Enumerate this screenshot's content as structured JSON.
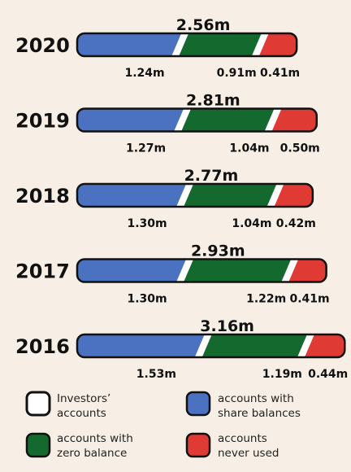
{
  "chart_data": {
    "type": "bar",
    "stacked": true,
    "orientation": "horizontal",
    "categories": [
      "2020",
      "2019",
      "2018",
      "2017",
      "2016"
    ],
    "totals_label": [
      "2.56m",
      "2.81m",
      "2.77m",
      "2.93m",
      "3.16m"
    ],
    "series": [
      {
        "name": "accounts with share balances",
        "color": "#4a72c0",
        "values": [
          1.24,
          1.27,
          1.3,
          1.3,
          1.53
        ],
        "labels": [
          "1.24m",
          "1.27m",
          "1.30m",
          "1.30m",
          "1.53m"
        ]
      },
      {
        "name": "accounts with zero balance",
        "color": "#146a2e",
        "values": [
          0.91,
          1.04,
          1.04,
          1.22,
          1.19
        ],
        "labels": [
          "0.91m",
          "1.04m",
          "1.04m",
          "1.22m",
          "1.19m"
        ]
      },
      {
        "name": "accounts never used",
        "color": "#e03a35",
        "values": [
          0.41,
          0.5,
          0.42,
          0.41,
          0.44
        ],
        "labels": [
          "0.41m",
          "0.50m",
          "0.42m",
          "0.41m",
          "0.44m"
        ]
      }
    ],
    "legend": {
      "frame": {
        "name": "Investors' accounts",
        "color": "#ffffff"
      },
      "items": [
        "accounts with share balances",
        "accounts with zero balance",
        "accounts never used"
      ]
    },
    "grid": false
  },
  "colors": {
    "background": "#f7efe6",
    "outline": "#111111"
  }
}
